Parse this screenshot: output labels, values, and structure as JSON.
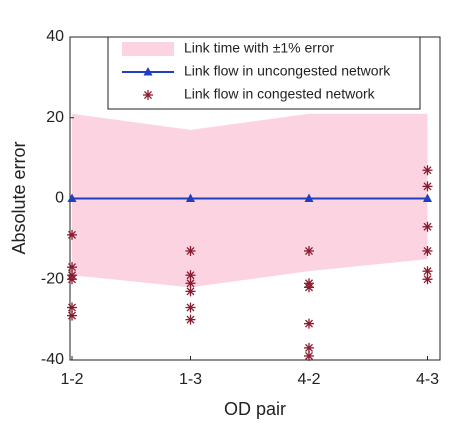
{
  "chart_data": {
    "type": "line",
    "xlabel": "OD pair",
    "ylabel": "Absolute error",
    "categories": [
      "1-2",
      "1-3",
      "4-2",
      "4-3"
    ],
    "ylim": [
      -40,
      40
    ],
    "yticks": [
      -40,
      -20,
      0,
      20,
      40
    ],
    "series": [
      {
        "name": "Link time with ±1% error",
        "color": "#fcd3e1",
        "kind": "band",
        "lower": [
          -19,
          -22,
          -18,
          -15
        ],
        "upper": [
          21,
          17,
          21,
          21
        ]
      },
      {
        "name": "Link flow in uncongested network",
        "color": "#1f3fbf",
        "kind": "line",
        "values": [
          0,
          0,
          0,
          0
        ]
      },
      {
        "name": "Link flow in congested network",
        "color": "#8b1a2e",
        "kind": "scatter",
        "values": [
          [
            -9,
            -17,
            -19,
            -20,
            -27,
            -29
          ],
          [
            -13,
            -19,
            -21,
            -23,
            -27,
            -30
          ],
          [
            -13,
            -21,
            -22,
            -31,
            -37,
            -39
          ],
          [
            7,
            3,
            -7,
            -13,
            -18,
            -20
          ]
        ]
      }
    ]
  }
}
